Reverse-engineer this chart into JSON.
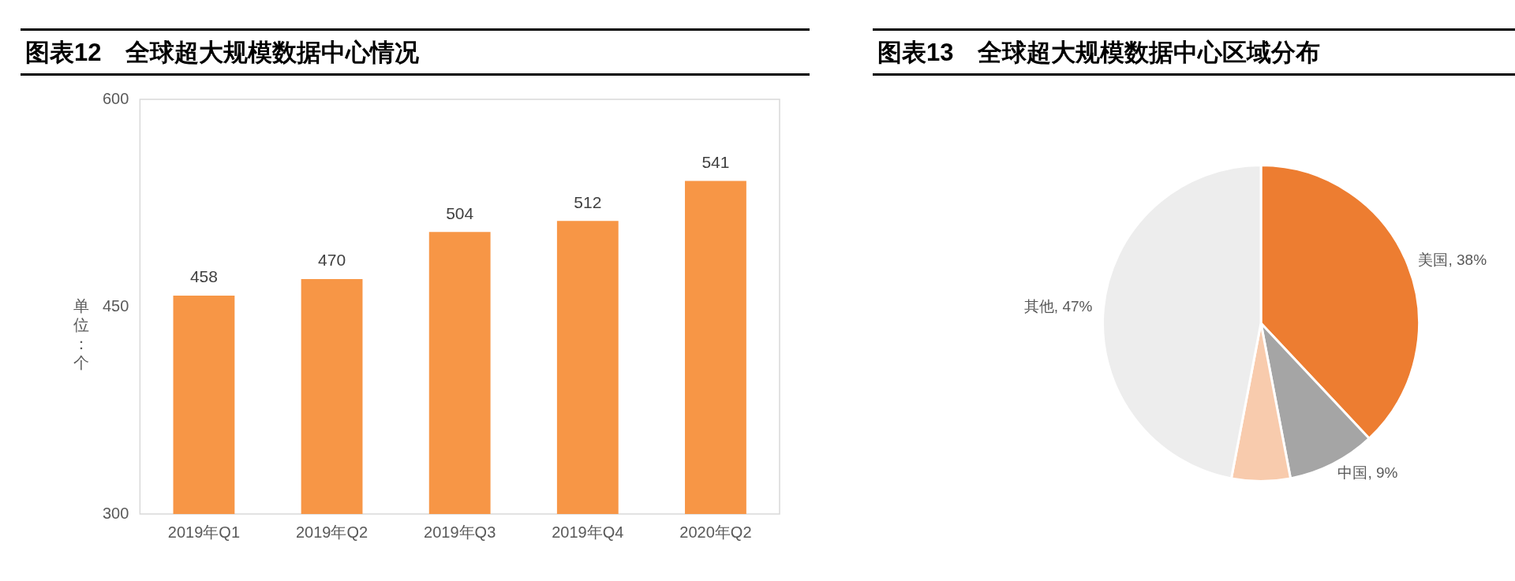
{
  "chart_data": [
    {
      "type": "bar",
      "title": "图表12　全球超大规模数据中心情况",
      "ylabel": "单位：个",
      "categories": [
        "2019年Q1",
        "2019年Q2",
        "2019年Q3",
        "2019年Q4",
        "2020年Q2"
      ],
      "values": [
        458,
        470,
        504,
        512,
        541
      ],
      "color": "#f79646",
      "ylim": [
        300,
        600
      ],
      "yticks": [
        300,
        450,
        600
      ],
      "grid": false,
      "data_labels": true,
      "legend": false
    },
    {
      "type": "pie",
      "title": "图表13　全球超大规模数据中心区域分布",
      "categories": [
        "美国",
        "中国",
        null,
        "其他"
      ],
      "values": [
        38,
        9,
        6,
        47
      ],
      "value_labels": [
        "38%",
        "9%",
        null,
        "47%"
      ],
      "colors": [
        "#ed7d31",
        "#a5a5a5",
        "#f8cbad",
        "#ededed"
      ],
      "legend": false
    }
  ]
}
